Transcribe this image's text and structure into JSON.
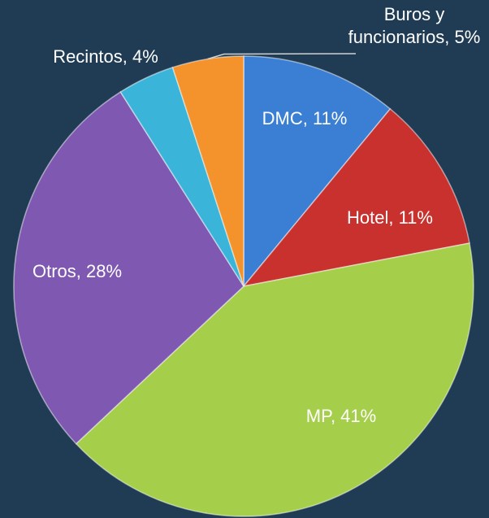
{
  "chart_data": {
    "type": "pie",
    "values": [
      11,
      11,
      41,
      28,
      4,
      5
    ],
    "value_labels": [
      "DMC, 11%",
      "Hotel, 11%",
      "MP, 41%",
      "Otros, 28%",
      "Recintos, 4%",
      "Buros y funcionarios, 5%"
    ],
    "colors": [
      "#3b7fd4",
      "#c8312d",
      "#a5cf4b",
      "#7f58b2",
      "#3ab5d9",
      "#f4922b"
    ]
  }
}
